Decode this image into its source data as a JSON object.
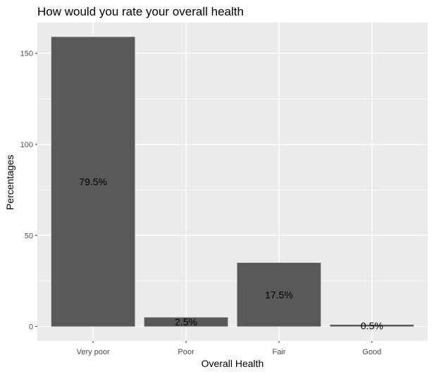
{
  "chart_data": {
    "type": "bar",
    "title": "How would you rate your overall health",
    "xlabel": "Overall Health",
    "ylabel": "Percentages",
    "categories": [
      "Very poor",
      "Poor",
      "Fair",
      "Good"
    ],
    "values": [
      159,
      5,
      35,
      1
    ],
    "data_labels": [
      "79.5%",
      "2.5%",
      "17.5%",
      "0.5%"
    ],
    "ylim": [
      -7.9,
      166.9
    ],
    "yticks": [
      0,
      50,
      100,
      150
    ],
    "yminor": [
      25,
      75,
      125
    ],
    "grid": true,
    "bar_color": "#595959",
    "panel_color": "#ebebeb",
    "grid_color": "#ffffff"
  }
}
